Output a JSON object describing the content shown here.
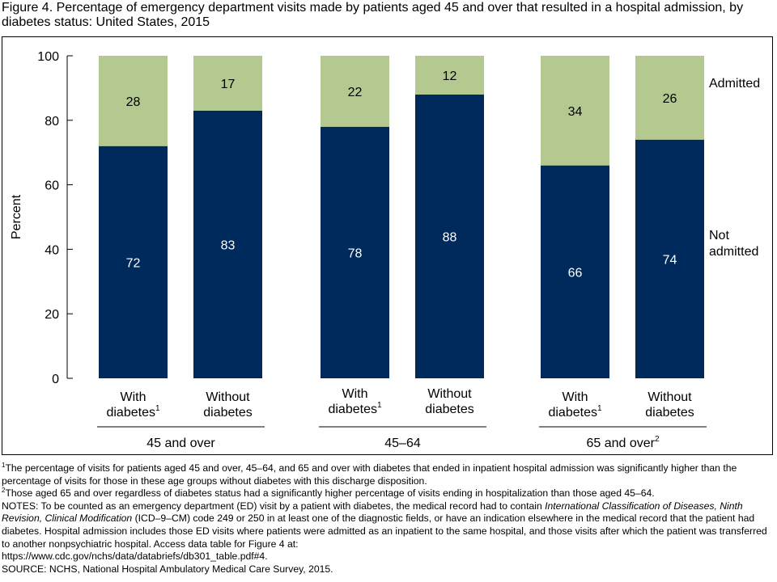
{
  "title": "Figure 4. Percentage of emergency department visits made by patients aged 45 and over that resulted in a hospital admission, by diabetes status: United States, 2015",
  "colors": {
    "not_admitted": "#002a5c",
    "admitted": "#b3c98f"
  },
  "chart_data": {
    "type": "bar",
    "stacked": true,
    "ylabel": "Percent",
    "ylim": [
      0,
      100
    ],
    "yticks": [
      0,
      20,
      40,
      60,
      80,
      100
    ],
    "grid": false,
    "legend_placement": "right",
    "groups": [
      {
        "label": "45 and over",
        "label_sup": "",
        "bars": [
          {
            "label": "With",
            "label2": "diabetes",
            "sup": "1"
          },
          {
            "label": "Without",
            "label2": "diabetes",
            "sup": ""
          }
        ]
      },
      {
        "label": "45–64",
        "label_sup": "",
        "bars": [
          {
            "label": "With",
            "label2": "diabetes",
            "sup": "1"
          },
          {
            "label": "Without",
            "label2": "diabetes",
            "sup": ""
          }
        ]
      },
      {
        "label": "65 and over",
        "label_sup": "2",
        "bars": [
          {
            "label": "With",
            "label2": "diabetes",
            "sup": "1"
          },
          {
            "label": "Without",
            "label2": "diabetes",
            "sup": ""
          }
        ]
      }
    ],
    "series": [
      {
        "name": "Not admitted",
        "values": [
          72,
          83,
          78,
          88,
          66,
          74
        ]
      },
      {
        "name": "Admitted",
        "values": [
          28,
          17,
          22,
          12,
          34,
          26
        ]
      }
    ],
    "legend": {
      "admitted": "Admitted",
      "not_admitted_line1": "Not",
      "not_admitted_line2": "admitted"
    }
  },
  "footnotes": {
    "fn1_sup": "1",
    "fn1": "The percentage of visits for patients aged 45 and over, 45–64, and 65 and over with diabetes that ended in inpatient hospital admission was significantly higher than the percentage of visits for those in these age groups without diabetes with this discharge disposition.",
    "fn2_sup": "2",
    "fn2": "Those aged 65 and over regardless of diabetes status had a significantly higher percentage of visits ending in hospitalization than those aged 45–64.",
    "notes_a": "NOTES: To be counted as an emergency department (ED) visit by a patient with diabetes, the medical record had to contain ",
    "notes_italic": "International Classification of Diseases, Ninth Revision, Clinical Modification",
    "notes_b": " (ICD–9–CM) code 249 or 250 in at least one of the diagnostic fields, or have an indication elsewhere in the medical record that the patient had diabetes. Hospital admission includes those ED visits where patients were admitted as an inpatient to the same hospital, and those visits after which the patient was transferred to another nonpsychiatric hospital. Access data table for Figure 4 at:",
    "url": "https://www.cdc.gov/nchs/data/databriefs/db301_table.pdf#4.",
    "source": "SOURCE: NCHS, National Hospital Ambulatory Medical Care Survey, 2015."
  }
}
